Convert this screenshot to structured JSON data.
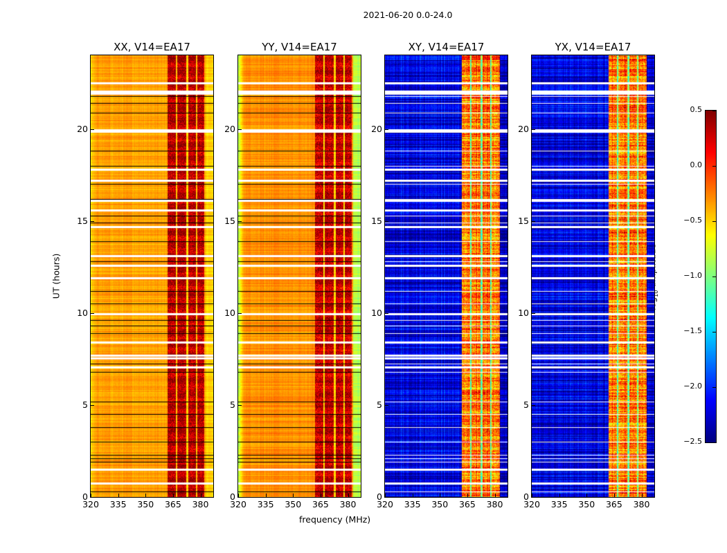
{
  "chart_data": {
    "type": "heatmap",
    "suptitle": "2021-06-20 0.0-24.0",
    "xlabel": "frequency (MHz)",
    "ylabel": "UT (hours)",
    "xlim": [
      320,
      387
    ],
    "ylim": [
      0,
      24
    ],
    "xticks": [
      "320",
      "335",
      "350",
      "365",
      "380"
    ],
    "xtick_values": [
      320,
      335,
      350,
      365,
      380
    ],
    "yticks": [
      "0",
      "5",
      "10",
      "15",
      "20"
    ],
    "ytick_values": [
      0,
      5,
      10,
      15,
      20
    ],
    "panels": [
      {
        "title": "XX, V14=EA17",
        "base": -0.35,
        "band": [
          362,
          382
        ],
        "band_level": 0.25,
        "edge_low": -0.5,
        "noise": 0.12
      },
      {
        "title": "YY, V14=EA17",
        "base": -0.3,
        "band": [
          362,
          382
        ],
        "band_level": 0.2,
        "edge_low": -0.85,
        "noise": 0.12
      },
      {
        "title": "XY, V14=EA17",
        "base": -2.2,
        "band": [
          362,
          382.5
        ],
        "band_level": -0.3,
        "edge_low": -2.3,
        "noise": 0.35
      },
      {
        "title": "YX, V14=EA17",
        "base": -2.2,
        "band": [
          362,
          382.5
        ],
        "band_level": -0.3,
        "edge_low": -2.3,
        "noise": 0.35
      }
    ],
    "band_gaps_mhz": [
      366.8,
      372.5,
      377.7
    ],
    "flagged_hours": [
      0.75,
      1.5,
      7.05,
      7.55,
      7.7,
      8.4,
      9.95,
      11.9,
      12.6,
      13.1,
      14.7,
      15.6,
      16.1,
      17.2,
      17.8,
      19.85,
      19.95,
      21.95,
      22.05,
      22.5
    ],
    "line_hours": [
      0.3,
      0.8,
      1.9,
      2.1,
      2.3,
      3.0,
      3.8,
      4.5,
      5.2,
      6.8,
      7.25,
      8.9,
      9.3,
      9.6,
      10.5,
      11.2,
      11.9,
      12.8,
      13.9,
      14.9,
      15.3,
      16.2,
      17.0,
      18.0,
      18.8,
      20.9,
      21.4,
      21.8
    ],
    "colorbar": {
      "label_prefix": "log",
      "label_sub": "10",
      "label_suffix": " amplitude",
      "ticks": [
        "0.5",
        "0.0",
        "−0.5",
        "−1.0",
        "−1.5",
        "−2.0",
        "−2.5"
      ],
      "tick_values": [
        0.5,
        0.0,
        -0.5,
        -1.0,
        -1.5,
        -2.0,
        -2.5
      ],
      "vmin": -2.5,
      "vmax": 0.5,
      "colormap": "jet"
    }
  }
}
